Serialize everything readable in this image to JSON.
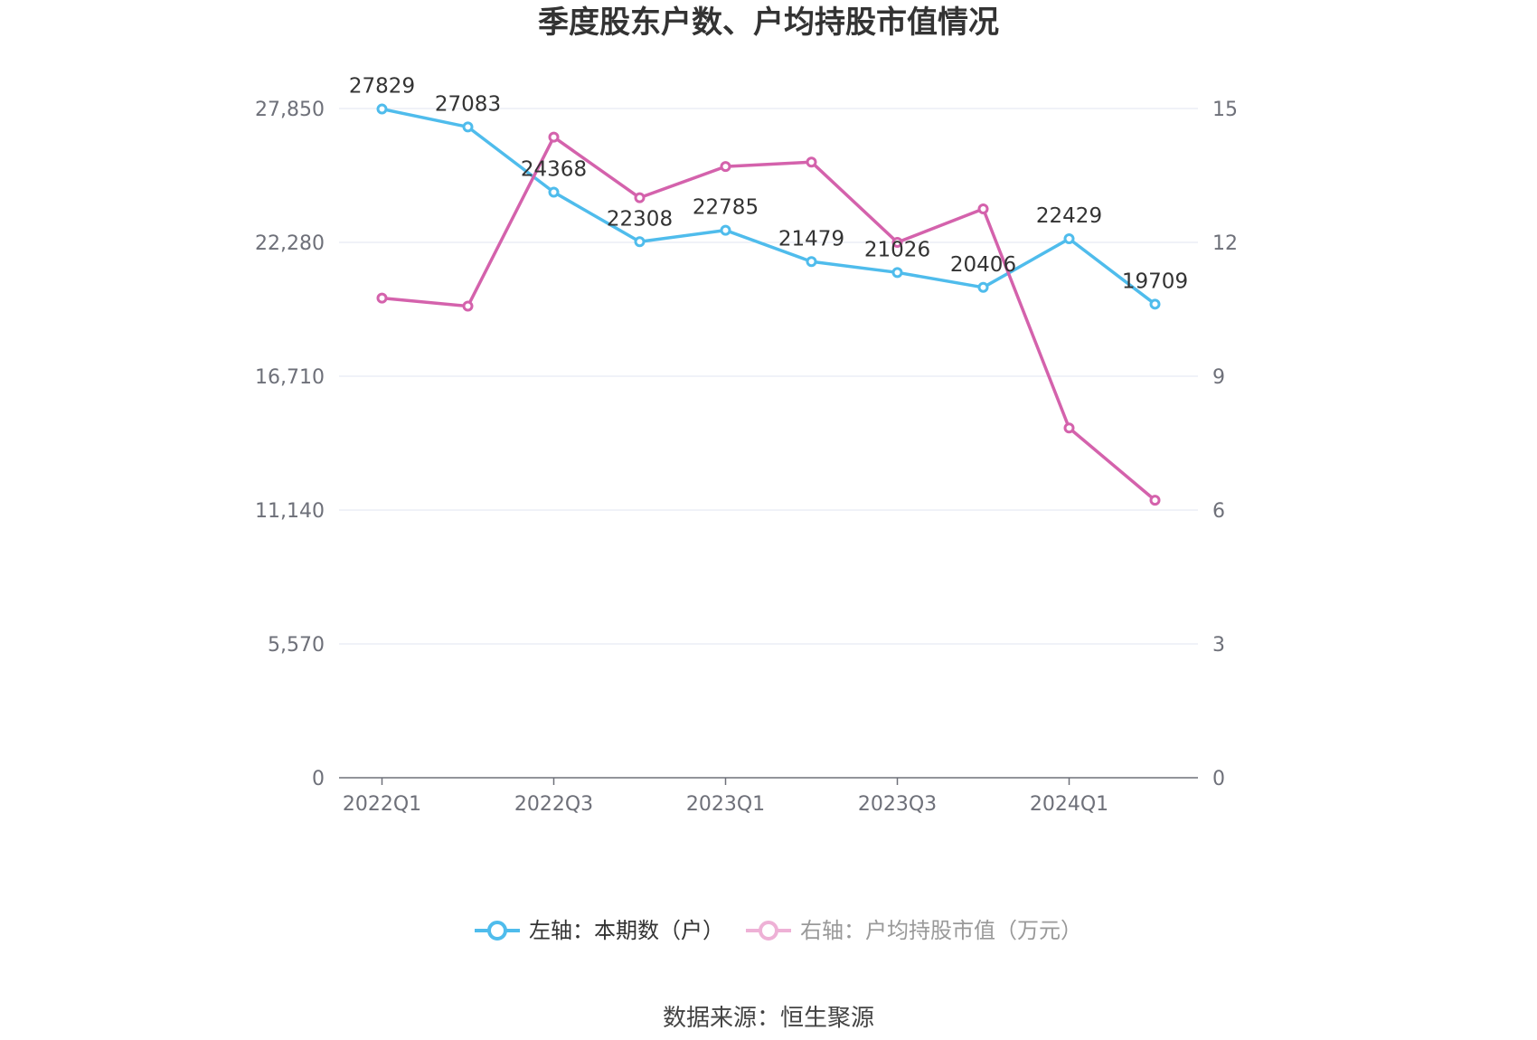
{
  "chart_data": {
    "type": "line",
    "title": "季度股东户数、户均持股市值情况",
    "categories": [
      "2022Q1",
      "2022Q2",
      "2022Q3",
      "2022Q4",
      "2023Q1",
      "2023Q2",
      "2023Q3",
      "2023Q4",
      "2024Q1",
      "2024Q2"
    ],
    "x_tick_labels": [
      "2022Q1",
      "2022Q3",
      "2023Q1",
      "2023Q3",
      "2024Q1"
    ],
    "left_axis": {
      "ticks": [
        "0",
        "5,570",
        "11,140",
        "16,710",
        "22,280",
        "27,850"
      ],
      "ylim": [
        0,
        27850
      ]
    },
    "right_axis": {
      "ticks": [
        "0",
        "3",
        "6",
        "9",
        "12",
        "15"
      ],
      "ylim": [
        0,
        15
      ]
    },
    "series": [
      {
        "name": "左轴：本期数（户）",
        "axis": "left",
        "color": "#4fbcec",
        "values": [
          27829,
          27083,
          24368,
          22308,
          22785,
          21479,
          21026,
          20406,
          22429,
          19709
        ],
        "labels": [
          "27829",
          "27083",
          "24368",
          "22308",
          "22785",
          "21479",
          "21026",
          "20406",
          "22429",
          "19709"
        ]
      },
      {
        "name": "右轴：户均持股市值（万元）",
        "axis": "right",
        "color": "#d462ac",
        "values": [
          10.75,
          10.57,
          14.36,
          13.0,
          13.7,
          13.8,
          12.0,
          12.75,
          7.84,
          6.22
        ]
      }
    ],
    "grid": true,
    "legend_position": "bottom"
  },
  "source": "数据来源：恒生聚源"
}
